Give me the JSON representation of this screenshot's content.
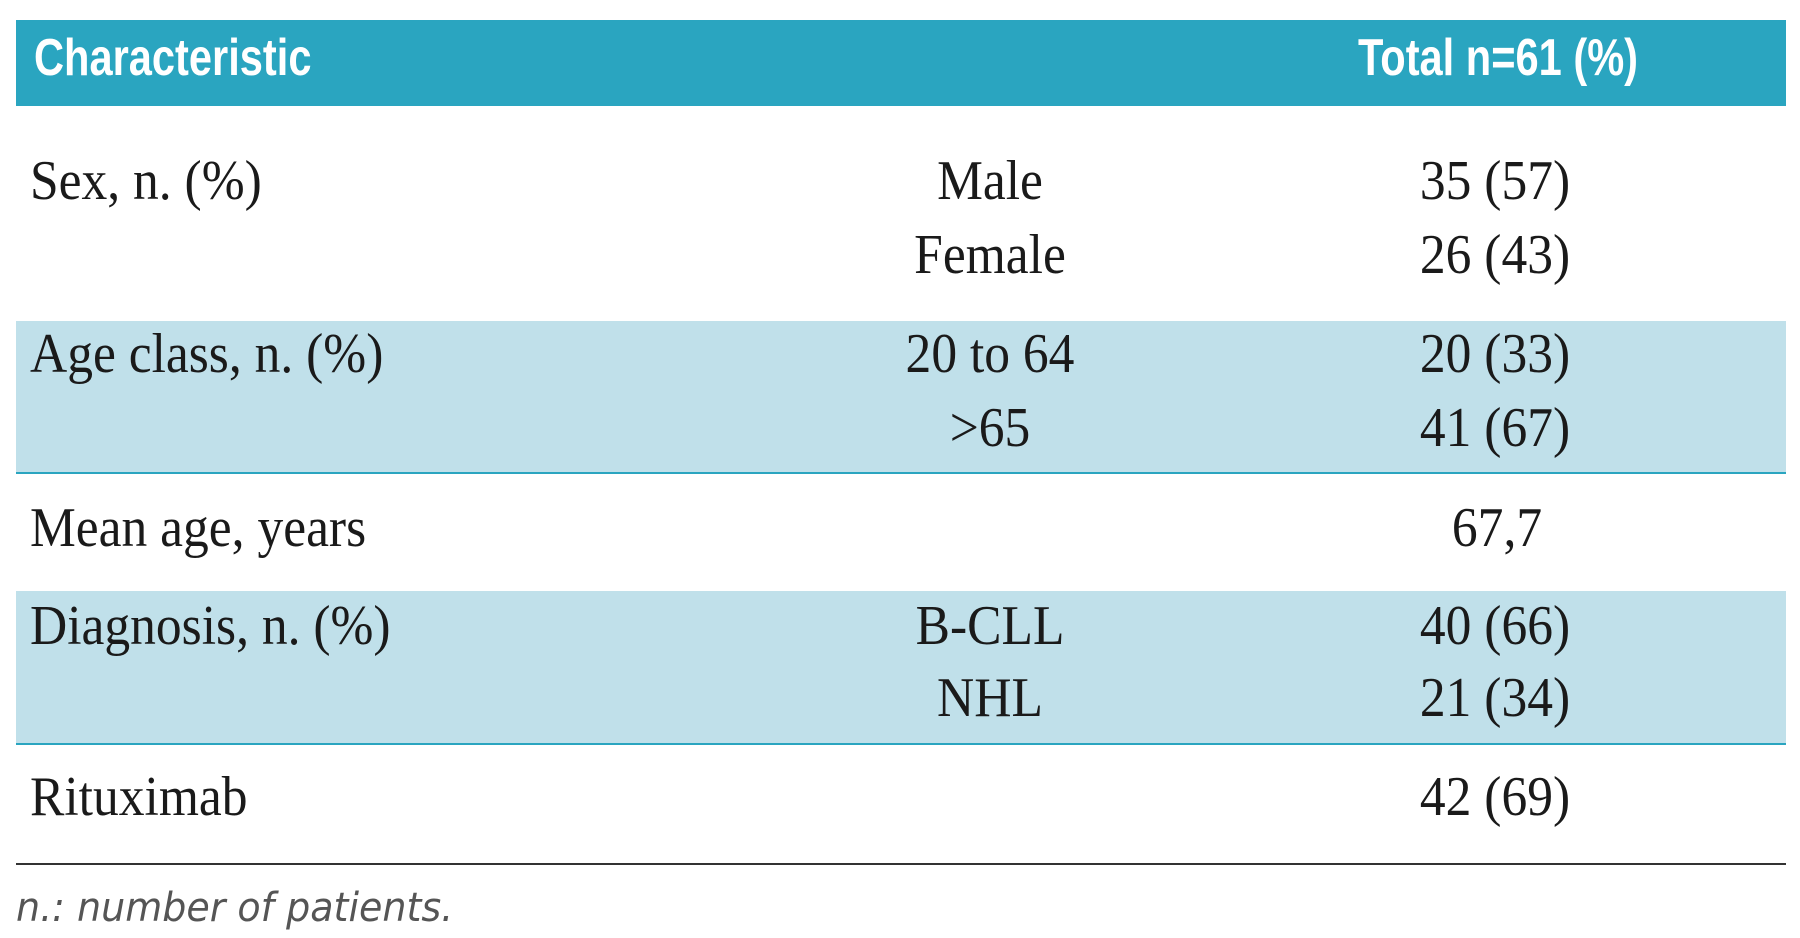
{
  "table": {
    "header": [
      "Characteristic",
      "Total n=61 (%)"
    ],
    "rows": [
      {
        "label": "Sex, n. (%)",
        "items": [
          {
            "sub": "Male",
            "value": "35 (57)"
          },
          {
            "sub": "Female",
            "value": "26 (43)"
          }
        ]
      },
      {
        "label": "Age class, n. (%)",
        "items": [
          {
            "sub": "20 to 64",
            "value": "20 (33)"
          },
          {
            "sub": ">65",
            "value": "41 (67)"
          }
        ]
      },
      {
        "label": "Mean age, years",
        "value": "67,7"
      },
      {
        "label": "Diagnosis, n. (%)",
        "items": [
          {
            "sub": "B-CLL",
            "value": "40 (66)"
          },
          {
            "sub": "NHL",
            "value": "21 (34)"
          }
        ]
      },
      {
        "label": "Rituximab",
        "value": "42 (69)"
      }
    ],
    "footnote": "n.: number of patients."
  }
}
